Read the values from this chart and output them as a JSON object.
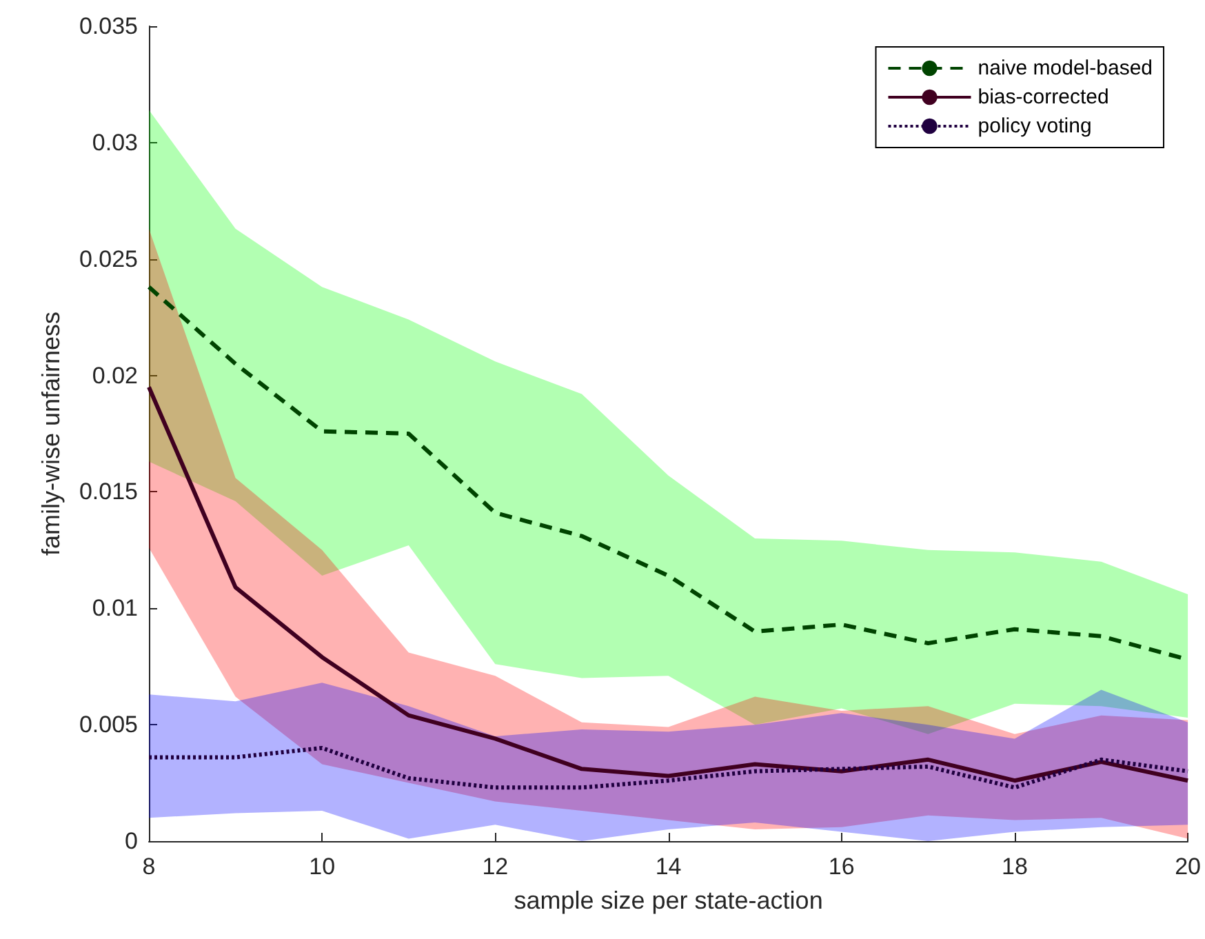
{
  "chart_data": {
    "type": "line",
    "xlabel": "sample size per state-action",
    "ylabel": "family-wise unfairness",
    "x": [
      8,
      9,
      10,
      11,
      12,
      13,
      14,
      15,
      16,
      17,
      18,
      19,
      20
    ],
    "series": [
      {
        "name": "naive model-based",
        "color": "#004400",
        "line_style": "dashed",
        "values": [
          0.0238,
          0.0205,
          0.0176,
          0.0175,
          0.0141,
          0.0131,
          0.0114,
          0.009,
          0.0093,
          0.0085,
          0.0091,
          0.0088,
          0.0078
        ],
        "lower": [
          0.0163,
          0.0146,
          0.0114,
          0.0127,
          0.0076,
          0.007,
          0.0071,
          0.005,
          0.0057,
          0.0046,
          0.0059,
          0.0058,
          0.0053
        ],
        "upper": [
          0.0314,
          0.0263,
          0.0238,
          0.0224,
          0.0206,
          0.0192,
          0.0157,
          0.013,
          0.0129,
          0.0125,
          0.0124,
          0.012,
          0.0106
        ]
      },
      {
        "name": "bias-corrected",
        "color": "#400020",
        "line_style": "solid",
        "values": [
          0.0195,
          0.0109,
          0.0079,
          0.0054,
          0.0044,
          0.0031,
          0.0028,
          0.0033,
          0.003,
          0.0035,
          0.0026,
          0.0034,
          0.0026
        ],
        "lower": [
          0.0126,
          0.0062,
          0.0033,
          0.0025,
          0.0017,
          0.0013,
          0.0009,
          0.0005,
          0.0006,
          0.0011,
          0.0009,
          0.001,
          0.0001
        ],
        "upper": [
          0.0263,
          0.0156,
          0.0125,
          0.0081,
          0.0071,
          0.0051,
          0.0049,
          0.0062,
          0.0056,
          0.0058,
          0.0046,
          0.0054,
          0.0052
        ]
      },
      {
        "name": "policy voting",
        "color": "#200040",
        "line_style": "dotted",
        "values": [
          0.0036,
          0.0036,
          0.004,
          0.0027,
          0.0023,
          0.0023,
          0.0026,
          0.003,
          0.0031,
          0.0032,
          0.0023,
          0.0035,
          0.003
        ],
        "lower": [
          0.001,
          0.0012,
          0.0013,
          0.0001,
          0.0007,
          0.0,
          0.0005,
          0.0008,
          0.0004,
          0.0,
          0.0004,
          0.0006,
          0.0007
        ],
        "upper": [
          0.0063,
          0.006,
          0.0068,
          0.0058,
          0.0045,
          0.0048,
          0.0047,
          0.005,
          0.0055,
          0.005,
          0.0044,
          0.0065,
          0.0051
        ]
      }
    ],
    "xlim": [
      8,
      20
    ],
    "xticks": [
      8,
      10,
      12,
      14,
      16,
      18,
      20
    ],
    "ylim": [
      0,
      0.035
    ],
    "yticks": [
      0,
      0.005,
      0.01,
      0.015,
      0.02,
      0.025,
      0.03,
      0.035
    ],
    "grid": false,
    "legend": "top right",
    "marker": "none"
  }
}
